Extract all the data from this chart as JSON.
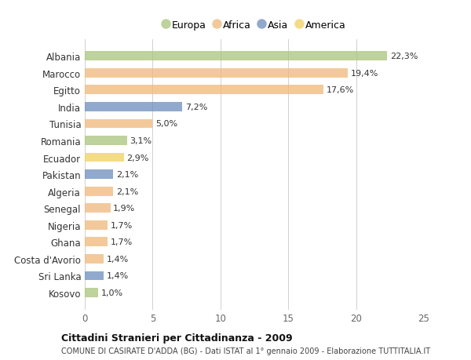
{
  "categories": [
    "Albania",
    "Marocco",
    "Egitto",
    "India",
    "Tunisia",
    "Romania",
    "Ecuador",
    "Pakistan",
    "Algeria",
    "Senegal",
    "Nigeria",
    "Ghana",
    "Costa d'Avorio",
    "Sri Lanka",
    "Kosovo"
  ],
  "values": [
    22.3,
    19.4,
    17.6,
    7.2,
    5.0,
    3.1,
    2.9,
    2.1,
    2.1,
    1.9,
    1.7,
    1.7,
    1.4,
    1.4,
    1.0
  ],
  "labels": [
    "22,3%",
    "19,4%",
    "17,6%",
    "7,2%",
    "5,0%",
    "3,1%",
    "2,9%",
    "2,1%",
    "2,1%",
    "1,9%",
    "1,7%",
    "1,7%",
    "1,4%",
    "1,4%",
    "1,0%"
  ],
  "continents": [
    "Europa",
    "Africa",
    "Africa",
    "Asia",
    "Africa",
    "Europa",
    "America",
    "Asia",
    "Africa",
    "Africa",
    "Africa",
    "Africa",
    "Africa",
    "Asia",
    "Europa"
  ],
  "colors": {
    "Europa": "#a8c47a",
    "Africa": "#f0b87a",
    "Asia": "#6b8dbd",
    "America": "#f0d060"
  },
  "legend_order": [
    "Europa",
    "Africa",
    "Asia",
    "America"
  ],
  "xlim": [
    0,
    25
  ],
  "xticks": [
    0,
    5,
    10,
    15,
    20,
    25
  ],
  "title": "Cittadini Stranieri per Cittadinanza - 2009",
  "subtitle": "COMUNE DI CASIRATE D'ADDA (BG) - Dati ISTAT al 1° gennaio 2009 - Elaborazione TUTTITALIA.IT",
  "bg_color": "#ffffff",
  "grid_color": "#d0d0d0",
  "bar_height": 0.55,
  "bar_alpha": 0.75
}
